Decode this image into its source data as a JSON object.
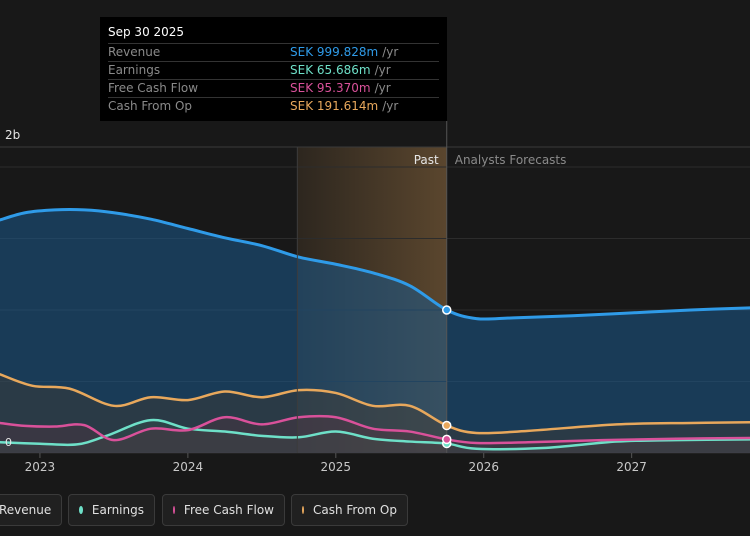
{
  "tooltip": {
    "date": "Sep 30 2025",
    "rows": [
      {
        "label": "Revenue",
        "value": "SEK 999.828m",
        "unit": "/yr",
        "color": "#2f9be8"
      },
      {
        "label": "Earnings",
        "value": "SEK 65.686m",
        "unit": "/yr",
        "color": "#6ee0c8"
      },
      {
        "label": "Free Cash Flow",
        "value": "SEK 95.370m",
        "unit": "/yr",
        "color": "#d9519a"
      },
      {
        "label": "Cash From Op",
        "value": "SEK 191.614m",
        "unit": "/yr",
        "color": "#e8a85c"
      }
    ]
  },
  "section_labels": {
    "past": "Past",
    "forecast": "Analysts Forecasts"
  },
  "legend": [
    {
      "label": "Revenue",
      "color": "#2f9be8"
    },
    {
      "label": "Earnings",
      "color": "#6ee0c8"
    },
    {
      "label": "Free Cash Flow",
      "color": "#d9519a"
    },
    {
      "label": "Cash From Op",
      "color": "#e8a85c"
    }
  ],
  "chart_data": {
    "type": "area",
    "y_tick_labels": [
      "2b",
      "0"
    ],
    "ylim": [
      0,
      2000
    ],
    "x_tick_labels": [
      "2023",
      "2024",
      "2025",
      "2026",
      "2027"
    ],
    "xlim": [
      2022.73,
      2027.8
    ],
    "past_start": 2024.74,
    "past_end": 2025.75,
    "marker_x": 2025.75,
    "series": [
      {
        "name": "Revenue",
        "color": "#2f9be8",
        "x": [
          2022.73,
          2022.9,
          2023.1,
          2023.3,
          2023.5,
          2023.75,
          2024.0,
          2024.25,
          2024.5,
          2024.75,
          2025.0,
          2025.25,
          2025.5,
          2025.75,
          2025.95,
          2026.2,
          2026.6,
          2027.0,
          2027.4,
          2027.8
        ],
        "y": [
          1630,
          1680,
          1700,
          1700,
          1680,
          1635,
          1570,
          1505,
          1450,
          1370,
          1320,
          1260,
          1170,
          1000,
          940,
          945,
          960,
          980,
          1000,
          1015
        ]
      },
      {
        "name": "Earnings",
        "color": "#6ee0c8",
        "x": [
          2022.73,
          2023.0,
          2023.25,
          2023.45,
          2023.75,
          2024.0,
          2024.25,
          2024.5,
          2024.75,
          2025.0,
          2025.25,
          2025.5,
          2025.75,
          2025.95,
          2026.4,
          2026.9,
          2027.3,
          2027.8
        ],
        "y": [
          75,
          65,
          60,
          120,
          230,
          170,
          150,
          120,
          110,
          150,
          100,
          80,
          66,
          30,
          35,
          80,
          90,
          95
        ]
      },
      {
        "name": "Free Cash Flow",
        "color": "#d9519a",
        "x": [
          2022.73,
          2022.9,
          2023.1,
          2023.3,
          2023.5,
          2023.75,
          2024.0,
          2024.25,
          2024.5,
          2024.75,
          2025.0,
          2025.25,
          2025.5,
          2025.75,
          2025.95,
          2026.3,
          2026.8,
          2027.3,
          2027.8
        ],
        "y": [
          210,
          190,
          185,
          195,
          90,
          170,
          160,
          250,
          200,
          250,
          250,
          170,
          150,
          95,
          70,
          75,
          90,
          100,
          105
        ]
      },
      {
        "name": "Cash From Op",
        "color": "#e8a85c",
        "x": [
          2022.73,
          2022.95,
          2023.2,
          2023.5,
          2023.75,
          2024.0,
          2024.25,
          2024.5,
          2024.75,
          2025.0,
          2025.25,
          2025.5,
          2025.75,
          2025.95,
          2026.3,
          2026.9,
          2027.4,
          2027.8
        ],
        "y": [
          550,
          470,
          450,
          330,
          390,
          370,
          430,
          390,
          440,
          420,
          330,
          330,
          192,
          140,
          155,
          200,
          210,
          215
        ]
      }
    ]
  }
}
